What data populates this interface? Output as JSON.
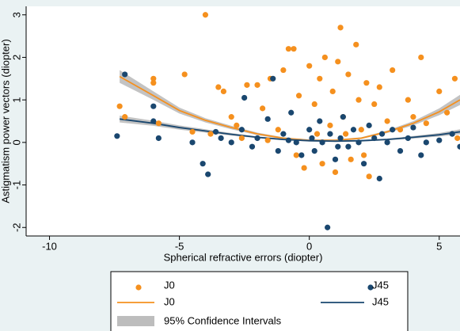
{
  "chart_data": {
    "type": "scatter",
    "xlabel": "Spherical refractive errors (diopter)",
    "ylabel": "Astigmatism power vectors (diopter)",
    "xlim": [
      -10.9,
      5.8
    ],
    "ylim": [
      -2.2,
      3.2
    ],
    "xticks": [
      -10,
      -5,
      0,
      5
    ],
    "yticks": [
      -2,
      -1,
      0,
      1,
      2,
      3
    ],
    "ci_label": "95% Confidence Intervals",
    "ci_color": "#bdbdbd",
    "series": [
      {
        "name": "J0",
        "type": "scatter",
        "color": "#f5901e",
        "x": [
          -7.3,
          -7.1,
          -6,
          -6,
          -5.8,
          -4.8,
          -4.5,
          -4,
          -3.5,
          -3.3,
          -3,
          -2.8,
          -2.4,
          -2,
          -1.8,
          -1.5,
          -1.2,
          -1,
          -0.8,
          -0.6,
          -0.4,
          -0.2,
          0,
          0.2,
          0.4,
          0.5,
          0.6,
          0.8,
          0.9,
          1,
          1.1,
          1.2,
          1.3,
          1.5,
          1.6,
          1.8,
          1.9,
          2,
          2.2,
          2.3,
          2.5,
          2.7,
          3,
          3.2,
          3.5,
          3.8,
          4,
          4.3,
          4.5,
          5,
          5.3,
          5.6,
          5.7,
          -0.5,
          0.3,
          1.4,
          2.1,
          -1.6,
          -2.6,
          -3.8
        ],
        "values": [
          0.85,
          0.6,
          1.5,
          1.4,
          0.45,
          1.6,
          0.25,
          3.0,
          1.3,
          1.2,
          0.6,
          0.4,
          1.35,
          1.35,
          0.8,
          1.5,
          0.3,
          1.7,
          2.2,
          2.2,
          1.1,
          -0.6,
          1.8,
          0.9,
          1.5,
          -0.5,
          2.0,
          0.4,
          1.2,
          -0.7,
          1.9,
          2.7,
          0.6,
          1.6,
          -0.4,
          2.3,
          1.0,
          0.3,
          1.4,
          -0.8,
          0.9,
          1.3,
          0.5,
          1.7,
          0.3,
          1.0,
          0.6,
          2.0,
          0.45,
          1.2,
          0.7,
          1.5,
          0.1,
          -0.3,
          0.2,
          0.2,
          -0.3,
          0.05,
          0.1,
          0.2
        ]
      },
      {
        "name": "J45",
        "type": "scatter",
        "color": "#1a476f",
        "x": [
          -7.4,
          -7.1,
          -6,
          -6,
          -5.8,
          -4.5,
          -4.1,
          -3.9,
          -3.6,
          -3.4,
          -3,
          -2.6,
          -2.5,
          -2.2,
          -2,
          -1.6,
          -1.4,
          -1.2,
          -1,
          -0.7,
          -0.5,
          -0.3,
          0,
          0.2,
          0.4,
          0.5,
          0.7,
          0.8,
          1,
          1.2,
          1.3,
          1.5,
          1.7,
          1.9,
          2.1,
          2.3,
          2.5,
          2.7,
          3,
          3.2,
          3.5,
          3.8,
          4,
          4.3,
          4.5,
          5,
          5.5,
          5.8,
          1.1,
          -0.8,
          2.8,
          0.1
        ],
        "values": [
          0.15,
          1.6,
          0.85,
          0.5,
          0.1,
          0.0,
          -0.5,
          -0.75,
          0.25,
          0.1,
          0.0,
          0.3,
          1.05,
          -0.1,
          0.1,
          0.55,
          1.5,
          -0.2,
          0.2,
          0.7,
          0.0,
          -0.3,
          0.3,
          -0.2,
          0.5,
          0.0,
          -2.0,
          0.2,
          -0.4,
          0.1,
          0.6,
          -0.1,
          0.3,
          0.0,
          -0.5,
          0.4,
          0.1,
          -0.85,
          0.0,
          0.3,
          -0.2,
          0.1,
          0.35,
          -0.3,
          0.0,
          0.05,
          0.2,
          -0.1,
          -0.1,
          0.05,
          0.2,
          0.1
        ]
      },
      {
        "name": "J0",
        "type": "line",
        "color": "#f5901e",
        "x": [
          -7.3,
          -6,
          -5,
          -4,
          -3,
          -2,
          -1,
          0,
          1,
          2,
          3,
          4,
          5,
          5.8
        ],
        "values": [
          1.55,
          1.1,
          0.75,
          0.52,
          0.35,
          0.2,
          0.1,
          0.05,
          0.05,
          0.1,
          0.25,
          0.45,
          0.72,
          1.0
        ],
        "lower": [
          1.4,
          1.0,
          0.68,
          0.47,
          0.31,
          0.17,
          0.08,
          0.03,
          0.03,
          0.08,
          0.22,
          0.4,
          0.64,
          0.88
        ],
        "upper": [
          1.7,
          1.2,
          0.82,
          0.57,
          0.39,
          0.23,
          0.12,
          0.07,
          0.07,
          0.12,
          0.28,
          0.5,
          0.8,
          1.12
        ]
      },
      {
        "name": "J45",
        "type": "line",
        "color": "#1a476f",
        "x": [
          -7.3,
          -6,
          -5,
          -4,
          -3,
          -2,
          -1,
          0,
          1,
          2,
          3,
          4,
          5,
          5.8
        ],
        "values": [
          0.55,
          0.45,
          0.35,
          0.27,
          0.19,
          0.12,
          0.07,
          0.04,
          0.03,
          0.04,
          0.07,
          0.12,
          0.18,
          0.25
        ],
        "lower": [
          0.47,
          0.39,
          0.3,
          0.23,
          0.16,
          0.1,
          0.05,
          0.02,
          0.01,
          0.02,
          0.05,
          0.09,
          0.14,
          0.19
        ],
        "upper": [
          0.63,
          0.51,
          0.4,
          0.31,
          0.22,
          0.14,
          0.09,
          0.06,
          0.05,
          0.06,
          0.09,
          0.15,
          0.22,
          0.31
        ]
      }
    ]
  }
}
